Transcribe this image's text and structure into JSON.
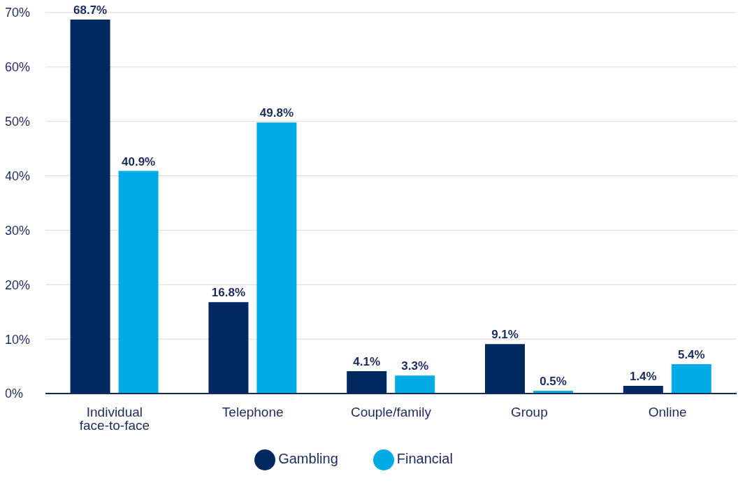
{
  "chart_data": {
    "type": "bar",
    "categories": [
      "Individual face-to-face",
      "Telephone",
      "Couple/family",
      "Group",
      "Online"
    ],
    "series": [
      {
        "name": "Gambling",
        "color": "#002960",
        "values": [
          68.7,
          16.8,
          4.1,
          9.1,
          1.4
        ],
        "value_labels": [
          "68.7%",
          "16.8%",
          "4.1%",
          "9.1%",
          "1.4%"
        ]
      },
      {
        "name": "Financial",
        "color": "#00abe6",
        "values": [
          40.9,
          49.8,
          3.3,
          0.5,
          5.4
        ],
        "value_labels": [
          "40.9%",
          "49.8%",
          "3.3%",
          "0.5%",
          "5.4%"
        ]
      }
    ],
    "ylim": [
      0,
      70
    ],
    "yticks": [
      {
        "value": 0,
        "label": "0%"
      },
      {
        "value": 10,
        "label": "10%"
      },
      {
        "value": 20,
        "label": "20%"
      },
      {
        "value": 30,
        "label": "30%"
      },
      {
        "value": 40,
        "label": "40%"
      },
      {
        "value": 50,
        "label": "50%"
      },
      {
        "value": 60,
        "label": "60%"
      },
      {
        "value": 70,
        "label": "70%"
      }
    ],
    "grid": "y",
    "legend": "bottom"
  }
}
